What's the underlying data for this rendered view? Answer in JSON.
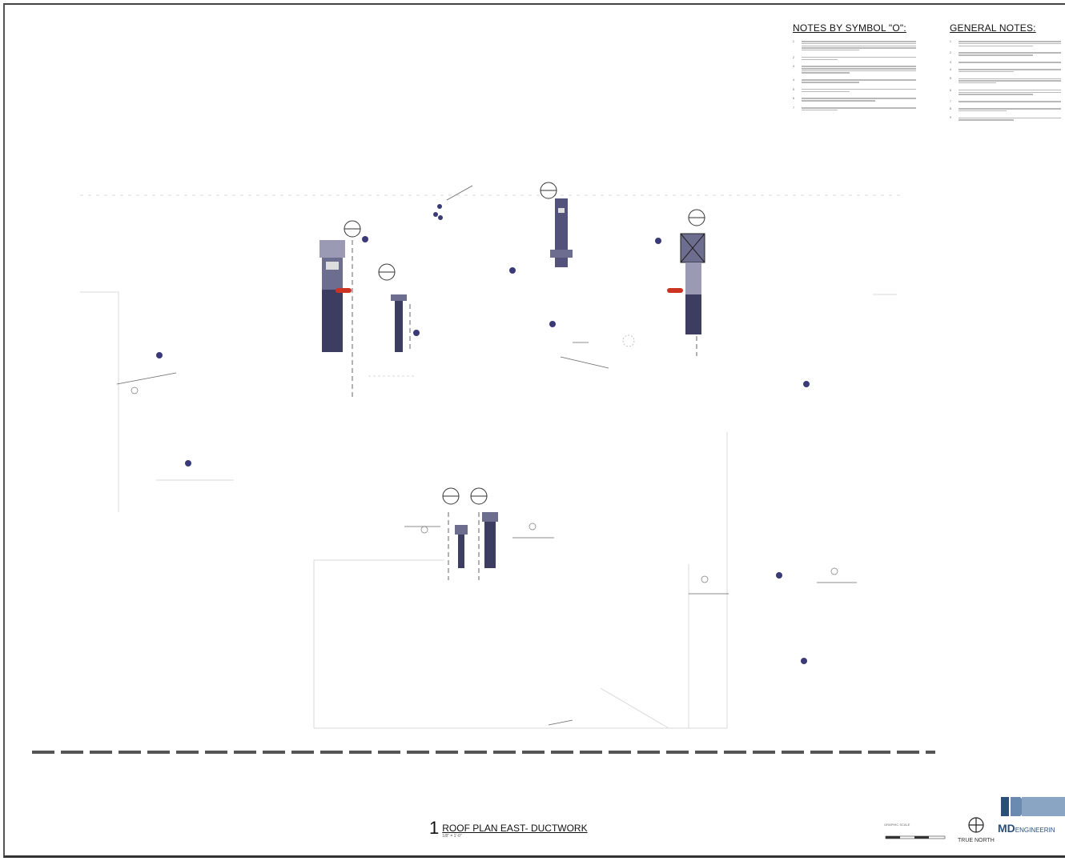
{
  "notes_by_symbol": {
    "heading": "NOTES BY SYMBOL \"O\":",
    "items": [
      {
        "num": "1",
        "lines": 5
      },
      {
        "num": "2",
        "lines": 2
      },
      {
        "num": "3",
        "lines": 4
      },
      {
        "num": "4",
        "lines": 2
      },
      {
        "num": "5",
        "lines": 2
      },
      {
        "num": "6",
        "lines": 2
      },
      {
        "num": "7",
        "lines": 2
      }
    ]
  },
  "general_notes": {
    "heading": "GENERAL NOTES:",
    "items": [
      {
        "num": "1",
        "lines": 3
      },
      {
        "num": "2",
        "lines": 2
      },
      {
        "num": "3",
        "lines": 1
      },
      {
        "num": "4",
        "lines": 2
      },
      {
        "num": "5",
        "lines": 3
      },
      {
        "num": "6",
        "lines": 3
      },
      {
        "num": "7",
        "lines": 1
      },
      {
        "num": "8",
        "lines": 2
      },
      {
        "num": "9",
        "lines": 2
      }
    ]
  },
  "drawing_title": {
    "number": "1",
    "title": "ROOF PLAN EAST- DUCTWORK",
    "scale": "1/8\" = 1'-0\""
  },
  "north_arrow": {
    "label": "TRUE NORTH"
  },
  "graphic_scale": {
    "label": "GRAPHIC SCALE"
  },
  "logo": {
    "mark": "MD",
    "name": "ENGINEERIN"
  },
  "colors": {
    "duct": "#3d3d62",
    "duct_light": "#9a9ab4",
    "dot": "#3a3a78",
    "red": "#cc3322"
  }
}
